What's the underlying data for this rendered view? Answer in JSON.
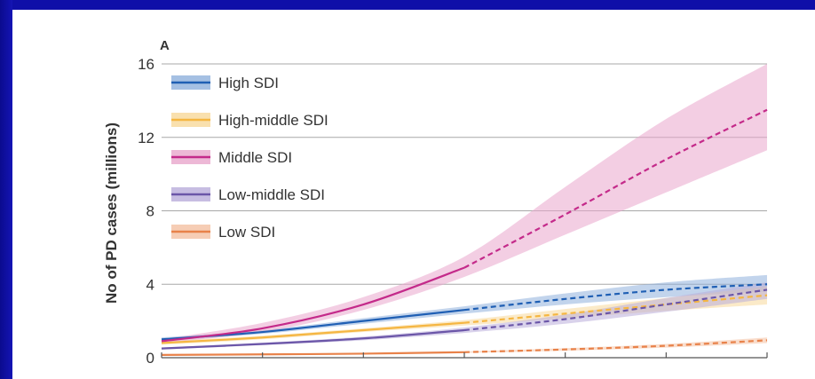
{
  "chart_data": {
    "type": "line",
    "panel_label": "A",
    "xlabel": "",
    "ylabel": "No of PD cases (millions)",
    "ylim": [
      0,
      16
    ],
    "yticks": [
      0,
      4,
      8,
      12,
      16
    ],
    "x": [
      0,
      1,
      2,
      3,
      4,
      5,
      6
    ],
    "x_tick_labels": [],
    "observed_until_x": 3,
    "legend_position": "top-left",
    "grid": true,
    "series": [
      {
        "name": "High SDI",
        "color": "#1f5fb4",
        "band_color": "#8fb0dc",
        "values": [
          1.0,
          1.4,
          2.0,
          2.6,
          3.2,
          3.7,
          4.0
        ],
        "lower": [
          0.9,
          1.3,
          1.85,
          2.4,
          2.9,
          3.3,
          3.6
        ],
        "upper": [
          1.1,
          1.5,
          2.15,
          2.8,
          3.5,
          4.1,
          4.5
        ]
      },
      {
        "name": "High-middle SDI",
        "color": "#f5b642",
        "band_color": "#f8d89a",
        "values": [
          0.8,
          1.1,
          1.5,
          1.9,
          2.4,
          2.9,
          3.4
        ],
        "lower": [
          0.7,
          1.0,
          1.4,
          1.75,
          2.15,
          2.55,
          2.9
        ],
        "upper": [
          0.9,
          1.2,
          1.6,
          2.05,
          2.65,
          3.25,
          3.9
        ]
      },
      {
        "name": "Middle SDI",
        "color": "#c42a8a",
        "band_color": "#e9a6cc",
        "values": [
          0.9,
          1.6,
          2.9,
          4.9,
          7.8,
          10.8,
          13.5
        ],
        "lower": [
          0.8,
          1.4,
          2.6,
          4.4,
          6.7,
          9.0,
          11.3
        ],
        "upper": [
          1.0,
          1.9,
          3.3,
          5.5,
          9.3,
          13.0,
          16.0
        ]
      },
      {
        "name": "Low-middle SDI",
        "color": "#6b56a8",
        "band_color": "#b9addb",
        "values": [
          0.5,
          0.75,
          1.05,
          1.5,
          2.1,
          2.9,
          3.7
        ],
        "lower": [
          0.45,
          0.68,
          0.95,
          1.35,
          1.85,
          2.5,
          3.2
        ],
        "upper": [
          0.55,
          0.82,
          1.15,
          1.65,
          2.35,
          3.25,
          4.1
        ]
      },
      {
        "name": "Low SDI",
        "color": "#e8824a",
        "band_color": "#f4c1a2",
        "values": [
          0.15,
          0.18,
          0.22,
          0.3,
          0.45,
          0.65,
          0.95
        ],
        "lower": [
          0.12,
          0.15,
          0.19,
          0.26,
          0.38,
          0.55,
          0.8
        ],
        "upper": [
          0.18,
          0.21,
          0.25,
          0.34,
          0.52,
          0.75,
          1.1
        ]
      }
    ]
  }
}
